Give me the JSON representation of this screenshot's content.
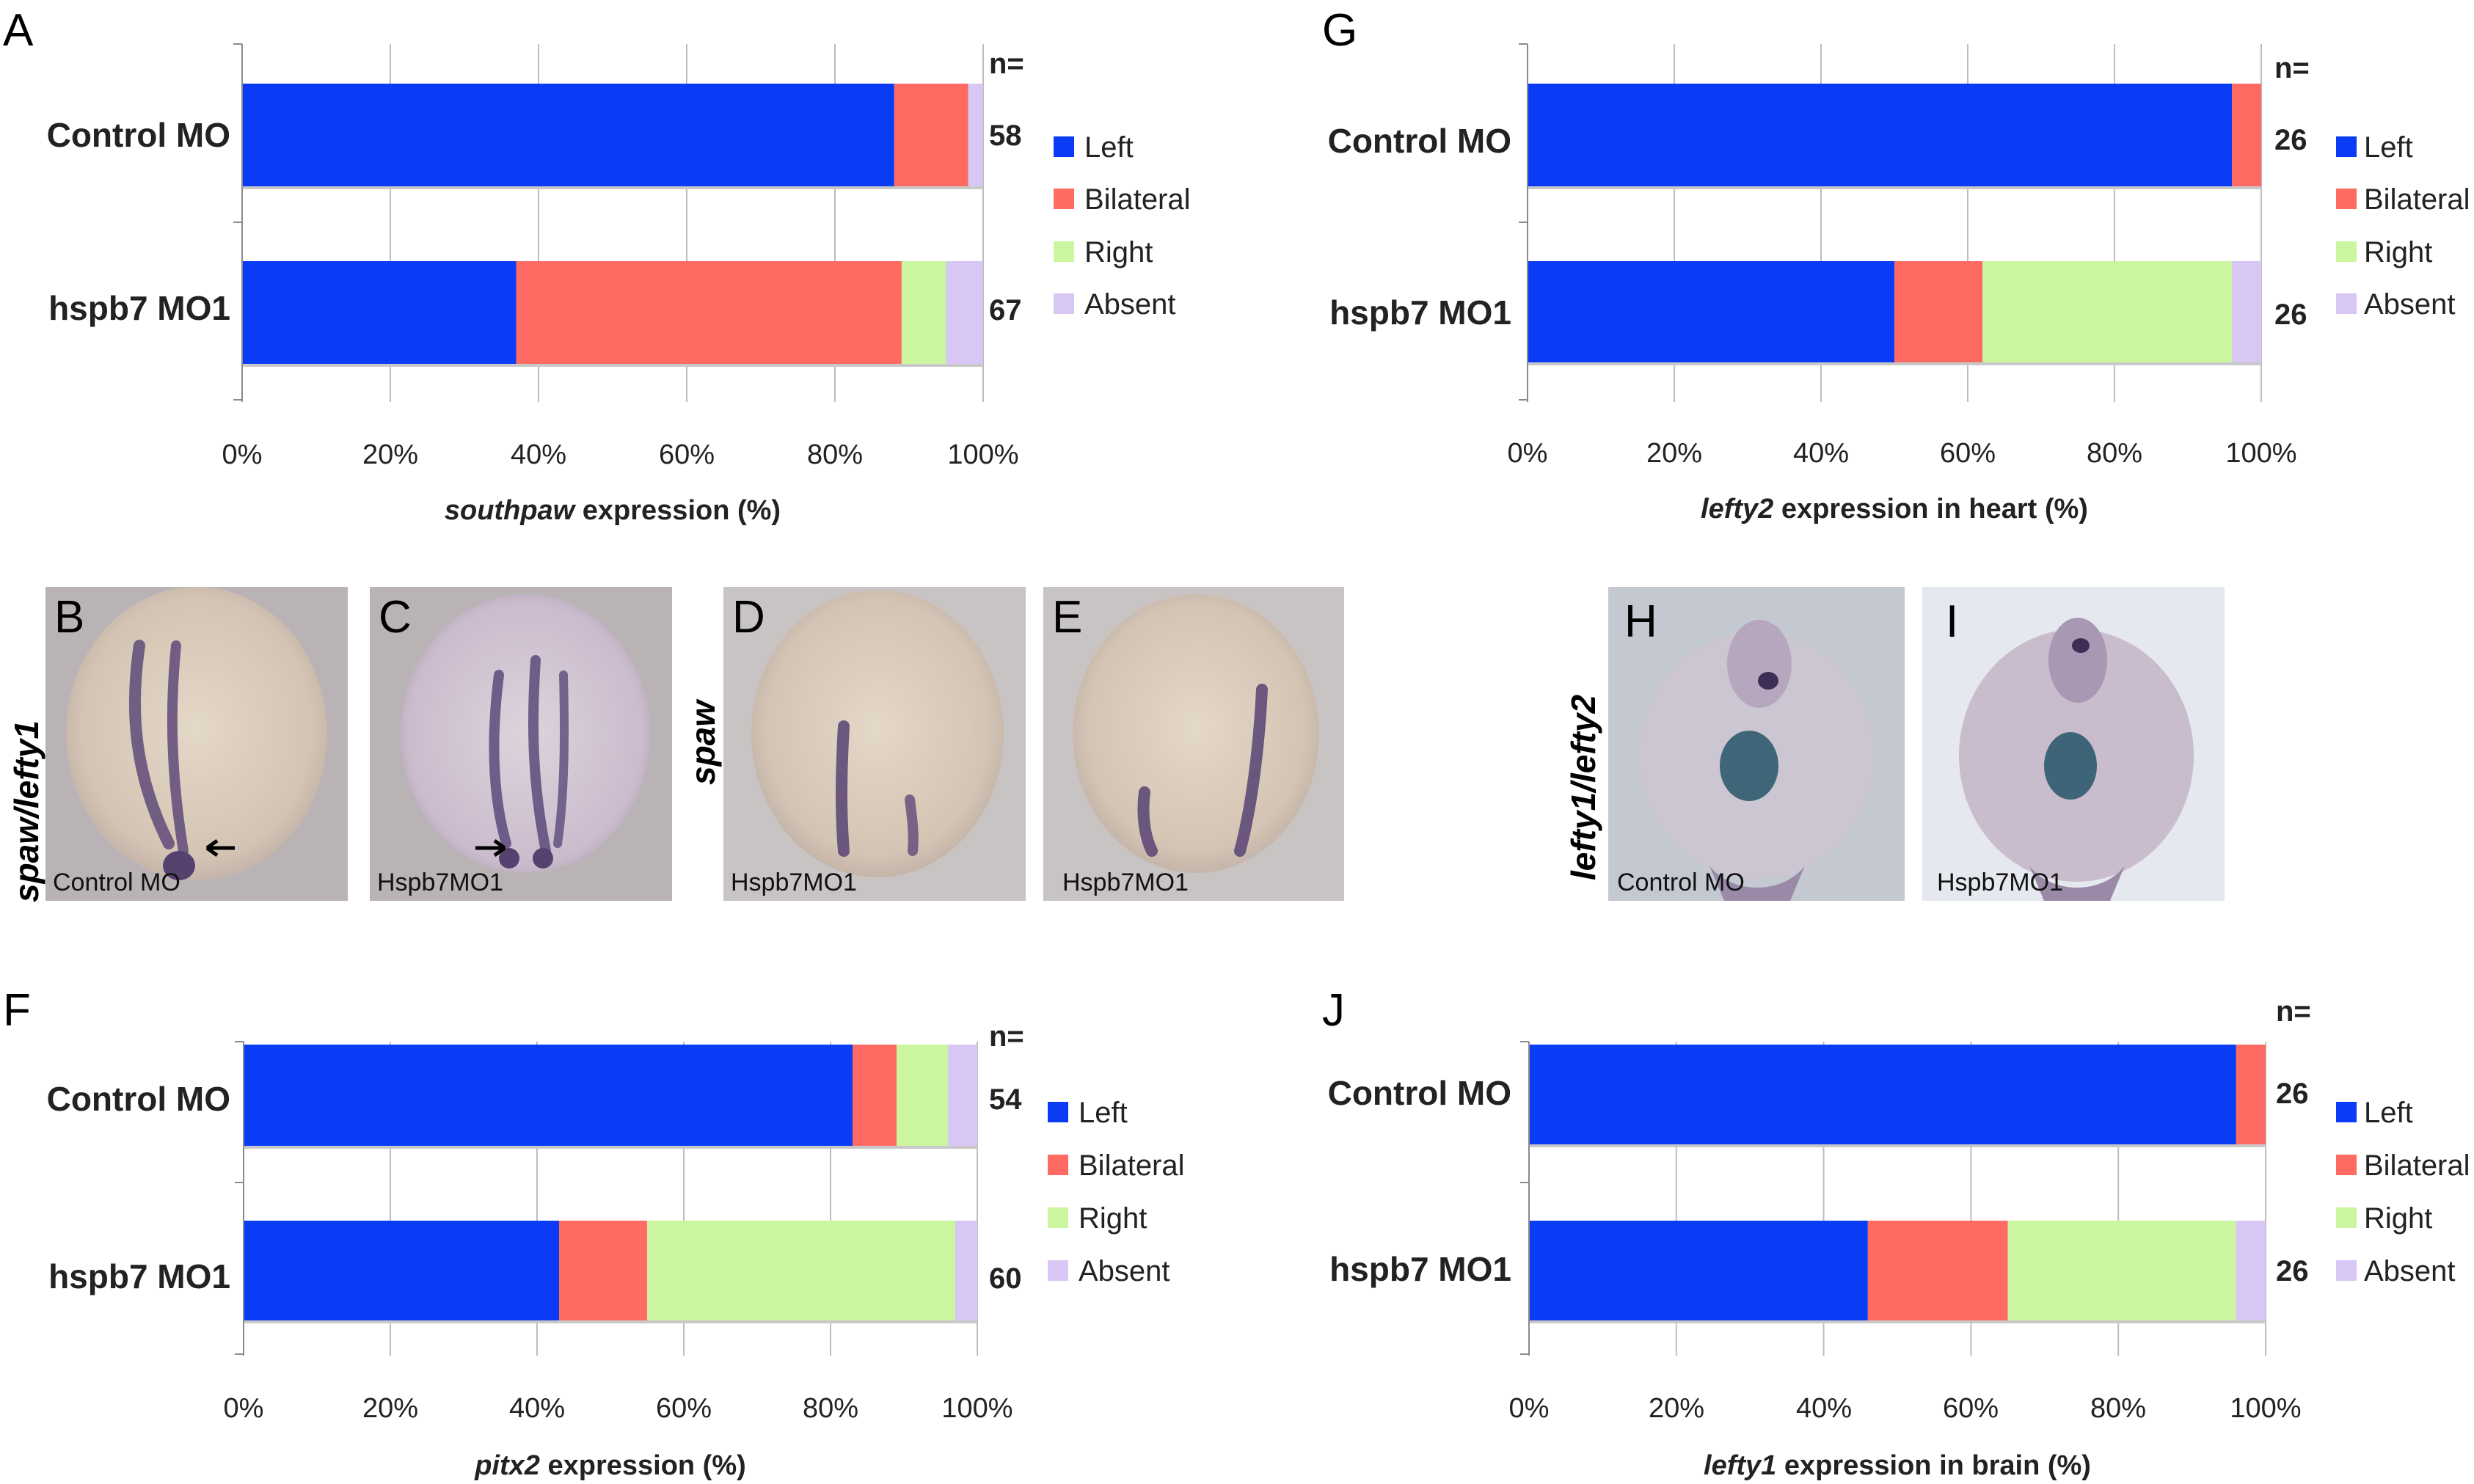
{
  "colors": {
    "Left": "#0a3cf5",
    "Bilateral": "#ff6b63",
    "Right": "#ccf5a0",
    "Absent": "#d8c6f5"
  },
  "charts": [
    {
      "letter": "A",
      "n_header": "n=",
      "categories": [
        "Control MO",
        "hspb7 MO1"
      ],
      "n": [
        "58",
        "67"
      ],
      "legend": [
        "Left",
        "Bilateral",
        "Right",
        "Absent"
      ],
      "xlabel_italic": "southpaw",
      "xlabel_rest": " expression (%)",
      "ticks": [
        "0%",
        "20%",
        "40%",
        "60%",
        "80%",
        "100%"
      ]
    },
    {
      "letter": "G",
      "n_header": "n=",
      "categories": [
        "Control MO",
        "hspb7 MO1"
      ],
      "n": [
        "26",
        "26"
      ],
      "legend": [
        "Left",
        "Bilateral",
        "Right",
        "Absent"
      ],
      "xlabel_italic": "lefty2",
      "xlabel_rest": " expression in heart (%)",
      "ticks": [
        "0%",
        "20%",
        "40%",
        "60%",
        "80%",
        "100%"
      ]
    },
    {
      "letter": "F",
      "n_header": "n=",
      "categories": [
        "Control MO",
        "hspb7 MO1"
      ],
      "n": [
        "54",
        "60"
      ],
      "legend": [
        "Left",
        "Bilateral",
        "Right",
        "Absent"
      ],
      "xlabel_italic": "pitx2",
      "xlabel_rest": " expression (%)",
      "ticks": [
        "0%",
        "20%",
        "40%",
        "60%",
        "80%",
        "100%"
      ]
    },
    {
      "letter": "J",
      "n_header": "n=",
      "categories": [
        "Control MO",
        "hspb7 MO1"
      ],
      "n": [
        "26",
        "26"
      ],
      "legend": [
        "Left",
        "Bilateral",
        "Right",
        "Absent"
      ],
      "xlabel_italic": "lefty1",
      "xlabel_rest": " expression in brain (%)",
      "ticks": [
        "0%",
        "20%",
        "40%",
        "60%",
        "80%",
        "100%"
      ]
    }
  ],
  "photos": {
    "side_labels": [
      "spaw/lefty1",
      "spaw",
      "lefty1/lefty2"
    ],
    "panels": [
      {
        "letter": "B",
        "caption": "Control MO"
      },
      {
        "letter": "C",
        "caption": "Hspb7MO1"
      },
      {
        "letter": "D",
        "caption": "Hspb7MO1"
      },
      {
        "letter": "E",
        "caption": "Hspb7MO1"
      },
      {
        "letter": "H",
        "caption": "Control MO"
      },
      {
        "letter": "I",
        "caption": "Hspb7MO1"
      }
    ]
  },
  "chart_data": [
    {
      "type": "bar",
      "orientation": "horizontal",
      "stacked": true,
      "categories": [
        "Control MO",
        "hspb7 MO1"
      ],
      "series": [
        {
          "name": "Left",
          "values": [
            88,
            37
          ]
        },
        {
          "name": "Bilateral",
          "values": [
            10,
            52
          ]
        },
        {
          "name": "Right",
          "values": [
            0,
            6
          ]
        },
        {
          "name": "Absent",
          "values": [
            2,
            5
          ]
        }
      ],
      "n": [
        58,
        67
      ],
      "xlim": [
        0,
        100
      ],
      "xlabel": "southpaw expression (%)",
      "legend": "right"
    },
    {
      "type": "bar",
      "orientation": "horizontal",
      "stacked": true,
      "categories": [
        "Control MO",
        "hspb7 MO1"
      ],
      "series": [
        {
          "name": "Left",
          "values": [
            96,
            50
          ]
        },
        {
          "name": "Bilateral",
          "values": [
            4,
            12
          ]
        },
        {
          "name": "Right",
          "values": [
            0,
            34
          ]
        },
        {
          "name": "Absent",
          "values": [
            0,
            4
          ]
        }
      ],
      "n": [
        26,
        26
      ],
      "xlim": [
        0,
        100
      ],
      "xlabel": "lefty2 expression in heart (%)",
      "legend": "right"
    },
    {
      "type": "bar",
      "orientation": "horizontal",
      "stacked": true,
      "categories": [
        "Control MO",
        "hspb7 MO1"
      ],
      "series": [
        {
          "name": "Left",
          "values": [
            83,
            43
          ]
        },
        {
          "name": "Bilateral",
          "values": [
            6,
            12
          ]
        },
        {
          "name": "Right",
          "values": [
            7,
            42
          ]
        },
        {
          "name": "Absent",
          "values": [
            4,
            3
          ]
        }
      ],
      "n": [
        54,
        60
      ],
      "xlim": [
        0,
        100
      ],
      "xlabel": "pitx2 expression (%)",
      "legend": "right"
    },
    {
      "type": "bar",
      "orientation": "horizontal",
      "stacked": true,
      "categories": [
        "Control MO",
        "hspb7 MO1"
      ],
      "series": [
        {
          "name": "Left",
          "values": [
            96,
            46
          ]
        },
        {
          "name": "Bilateral",
          "values": [
            4,
            19
          ]
        },
        {
          "name": "Right",
          "values": [
            0,
            31
          ]
        },
        {
          "name": "Absent",
          "values": [
            0,
            4
          ]
        }
      ],
      "n": [
        26,
        26
      ],
      "xlim": [
        0,
        100
      ],
      "xlabel": "lefty1 expression in brain (%)",
      "legend": "right"
    }
  ]
}
